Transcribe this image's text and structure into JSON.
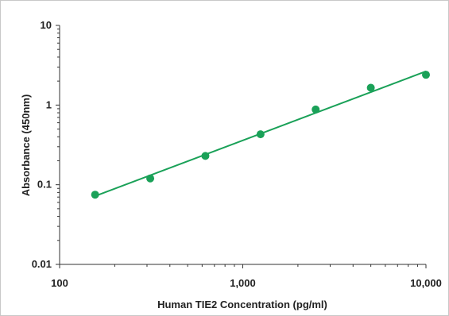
{
  "chart_data": {
    "type": "scatter",
    "title": "",
    "xlabel": "Human TIE2 Concentration (pg/ml)",
    "ylabel": "Absorbance (450nm)",
    "x_scale": "log",
    "y_scale": "log",
    "xlim": [
      100,
      10000
    ],
    "ylim": [
      0.01,
      10
    ],
    "x_ticks": [
      100,
      1000,
      10000
    ],
    "x_tick_labels": [
      "100",
      "1,000",
      "10,000"
    ],
    "y_ticks": [
      0.01,
      0.1,
      1,
      10
    ],
    "y_tick_labels": [
      "0.01",
      "0.1",
      "1",
      "10"
    ],
    "grid": false,
    "legend": "none",
    "series": [
      {
        "points": [
          {
            "x": 156.25,
            "y": 0.075
          },
          {
            "x": 312.5,
            "y": 0.12
          },
          {
            "x": 625,
            "y": 0.23
          },
          {
            "x": 1250,
            "y": 0.43
          },
          {
            "x": 2500,
            "y": 0.88
          },
          {
            "x": 5000,
            "y": 1.65
          },
          {
            "x": 10000,
            "y": 2.4
          }
        ],
        "fit_line": {
          "x": [
            156.25,
            10000
          ],
          "y": [
            0.072,
            2.65
          ]
        }
      }
    ],
    "colors": {
      "series": "#1aa158",
      "axis": "#333333"
    }
  }
}
